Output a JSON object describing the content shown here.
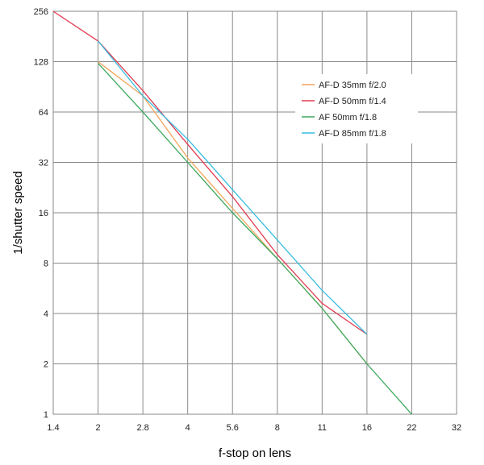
{
  "chart_data": {
    "type": "line",
    "title": "",
    "xlabel": "f-stop on lens",
    "ylabel": "1/shutter speed",
    "x_scale": "log2",
    "y_scale": "log2",
    "xlim": [
      1.4,
      32
    ],
    "ylim": [
      1,
      256
    ],
    "x_ticks": [
      1.4,
      2,
      2.8,
      4,
      5.6,
      8,
      11,
      16,
      22,
      32
    ],
    "x_tick_labels": [
      "1.4",
      "2",
      "2.8",
      "4",
      "5.6",
      "8",
      "11",
      "16",
      "22",
      "32"
    ],
    "y_ticks": [
      1,
      2,
      4,
      8,
      16,
      32,
      64,
      128,
      256
    ],
    "y_tick_labels": [
      "1",
      "2",
      "4",
      "8",
      "16",
      "32",
      "64",
      "128",
      "256"
    ],
    "grid": true,
    "legend_position": "top-right",
    "series": [
      {
        "name": "AF-D 35mm f/2.0",
        "color": "#f2a65a",
        "x": [
          2,
          2.8,
          4,
          5.6,
          8,
          11,
          16
        ],
        "y": [
          128,
          80,
          34,
          17,
          8.5,
          4.3,
          2
        ]
      },
      {
        "name": "AF-D 50mm f/1.4",
        "color": "#e03a4f",
        "x": [
          1.4,
          2,
          2.8,
          4,
          5.6,
          8,
          11,
          16
        ],
        "y": [
          256,
          170,
          86,
          41,
          20,
          9,
          4.6,
          3
        ]
      },
      {
        "name": "AF 50mm f/1.8",
        "color": "#3aa85c",
        "x": [
          2,
          2.8,
          4,
          5.6,
          8,
          11,
          16,
          22
        ],
        "y": [
          125,
          64,
          32,
          16,
          8.5,
          4.3,
          2,
          1
        ]
      },
      {
        "name": "AF-D 85mm f/1.8",
        "color": "#35bde0",
        "x": [
          2,
          2.8,
          4,
          5.6,
          8,
          11,
          16
        ],
        "y": [
          170,
          80,
          44,
          22,
          11,
          5.5,
          3
        ]
      }
    ]
  }
}
